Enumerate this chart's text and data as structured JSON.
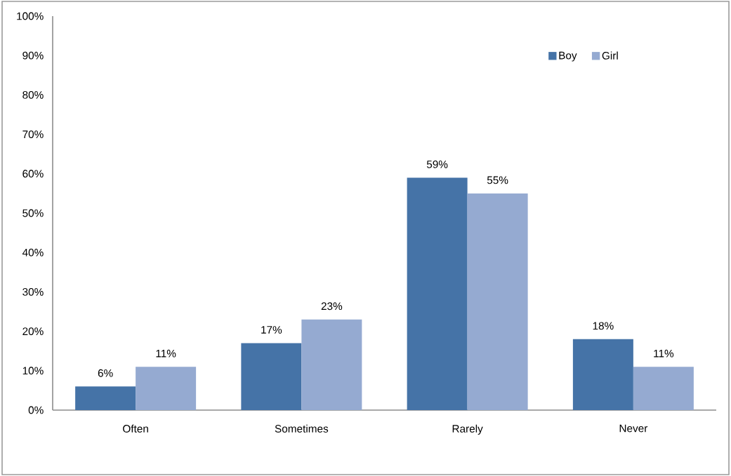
{
  "chart_data": {
    "type": "bar",
    "categories": [
      "Often",
      "Sometimes",
      "Rarely",
      "Never"
    ],
    "series": [
      {
        "name": "Boy",
        "color": "#4573a7",
        "values": [
          6,
          17,
          59,
          18
        ],
        "value_labels": [
          "6%",
          "17%",
          "59%",
          "18%"
        ]
      },
      {
        "name": "Girl",
        "color": "#95aad1",
        "values": [
          11,
          23,
          55,
          11
        ],
        "value_labels": [
          "11%",
          "23%",
          "55%",
          "11%"
        ]
      }
    ],
    "ylim": [
      0,
      100
    ],
    "yticks": [
      {
        "value": 0,
        "label": "0%"
      },
      {
        "value": 10,
        "label": "10%"
      },
      {
        "value": 20,
        "label": "20%"
      },
      {
        "value": 30,
        "label": "30%"
      },
      {
        "value": 40,
        "label": "40%"
      },
      {
        "value": 50,
        "label": "50%"
      },
      {
        "value": 60,
        "label": "60%"
      },
      {
        "value": 70,
        "label": "70%"
      },
      {
        "value": 80,
        "label": "80%"
      },
      {
        "value": 90,
        "label": "90%"
      },
      {
        "value": 100,
        "label": "100%"
      }
    ],
    "legend": "top right"
  }
}
